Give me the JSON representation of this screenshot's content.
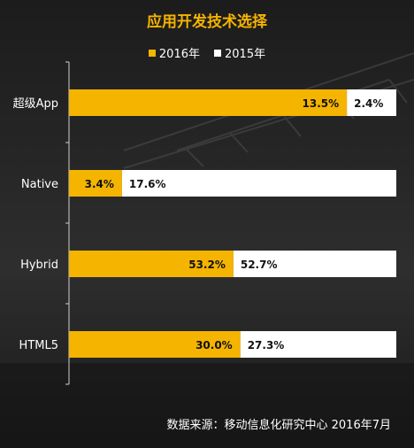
{
  "colors": {
    "series_2016": "#f5b400",
    "series_2015": "#ffffff",
    "title": "#f5b400",
    "text": "#ffffff",
    "axis": "#cfcfcf"
  },
  "chart_data": {
    "type": "bar",
    "orientation": "horizontal-stacked",
    "title": "应用开发技术选择",
    "categories": [
      "超级App",
      "Native",
      "Hybrid",
      "HTML5"
    ],
    "series": [
      {
        "name": "2016年",
        "values": [
          13.5,
          3.4,
          53.2,
          30.0
        ],
        "labels": [
          "13.5%",
          "3.4%",
          "53.2%",
          "30.0%"
        ]
      },
      {
        "name": "2015年",
        "values": [
          2.4,
          17.6,
          52.7,
          27.3
        ],
        "labels": [
          "2.4%",
          "17.6%",
          "52.7%",
          "27.3%"
        ]
      }
    ],
    "legend_position": "top-center",
    "grid": false
  },
  "source": "数据来源：移动信息化研究中心 2016年7月"
}
